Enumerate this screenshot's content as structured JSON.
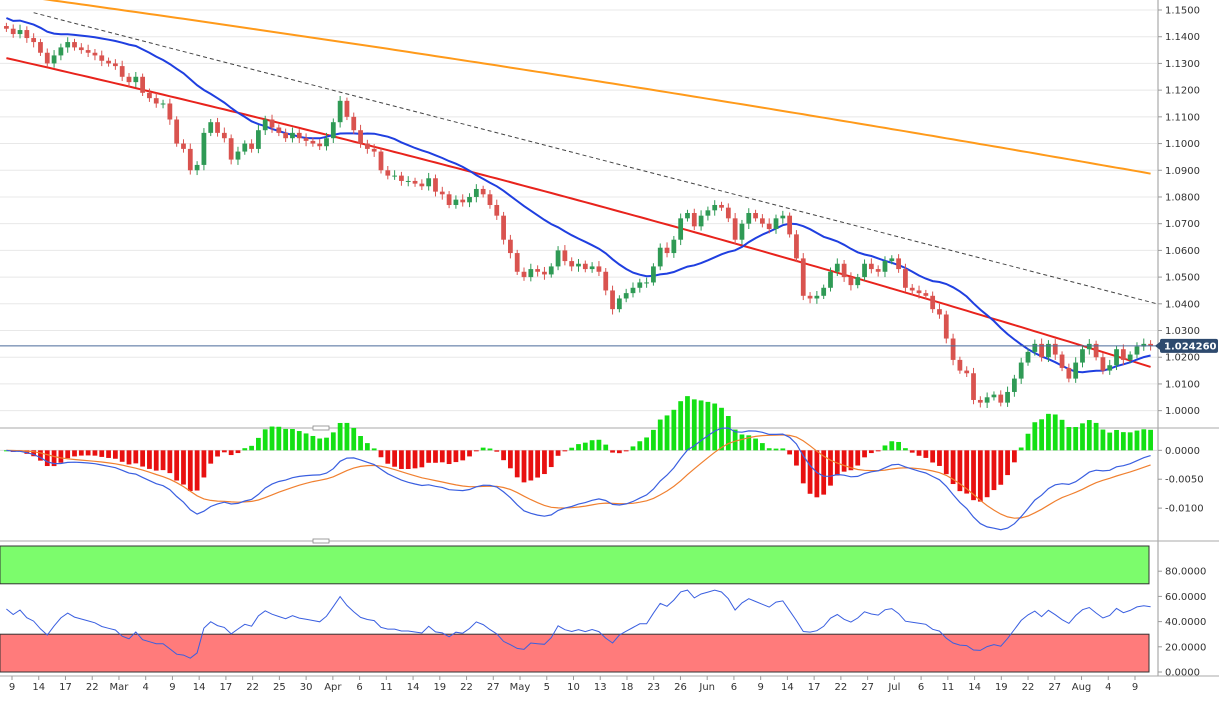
{
  "chart_data": [
    {
      "type": "candlestick",
      "panel": "price",
      "ylim": [
        0.995,
        1.153
      ],
      "y_ticks": [
        "1.1500",
        "1.1400",
        "1.1300",
        "1.1200",
        "1.1100",
        "1.1000",
        "1.0900",
        "1.0800",
        "1.0700",
        "1.0600",
        "1.0500",
        "1.0400",
        "1.0300",
        "1.0200",
        "1.0100",
        "1.0000"
      ],
      "last_price": "1.024260",
      "colors": {
        "up": "#2f9a55",
        "down": "#d9534f",
        "ma_fast": "#1f3fe0",
        "ma_mid": "#e8231c",
        "ma_slow": "#ff9a1a",
        "trendline": "#444444",
        "price_line": "#4a6a9a"
      },
      "series": {
        "close": [
          1.143,
          1.141,
          1.1425,
          1.1395,
          1.138,
          1.134,
          1.13,
          1.133,
          1.136,
          1.138,
          1.136,
          1.135,
          1.134,
          1.133,
          1.131,
          1.13,
          1.129,
          1.125,
          1.123,
          1.125,
          1.119,
          1.117,
          1.115,
          1.115,
          1.109,
          1.1,
          1.098,
          1.09,
          1.092,
          1.104,
          1.108,
          1.104,
          1.102,
          1.094,
          1.097,
          1.1,
          1.098,
          1.105,
          1.109,
          1.106,
          1.104,
          1.102,
          1.104,
          1.102,
          1.101,
          1.1,
          1.099,
          1.102,
          1.108,
          1.116,
          1.11,
          1.105,
          1.1,
          1.098,
          1.097,
          1.09,
          1.088,
          1.088,
          1.086,
          1.086,
          1.085,
          1.084,
          1.087,
          1.082,
          1.081,
          1.077,
          1.079,
          1.078,
          1.08,
          1.083,
          1.081,
          1.077,
          1.073,
          1.064,
          1.059,
          1.052,
          1.05,
          1.053,
          1.052,
          1.051,
          1.054,
          1.06,
          1.056,
          1.054,
          1.055,
          1.053,
          1.054,
          1.052,
          1.045,
          1.038,
          1.042,
          1.044,
          1.046,
          1.048,
          1.048,
          1.054,
          1.061,
          1.059,
          1.064,
          1.072,
          1.074,
          1.069,
          1.073,
          1.075,
          1.077,
          1.076,
          1.072,
          1.064,
          1.07,
          1.074,
          1.072,
          1.07,
          1.068,
          1.072,
          1.073,
          1.066,
          1.057,
          1.043,
          1.042,
          1.043,
          1.046,
          1.052,
          1.055,
          1.05,
          1.047,
          1.05,
          1.055,
          1.053,
          1.052,
          1.056,
          1.057,
          1.053,
          1.046,
          1.045,
          1.044,
          1.043,
          1.038,
          1.036,
          1.027,
          1.019,
          1.015,
          1.014,
          1.004,
          1.003,
          1.005,
          1.006,
          1.003,
          1.007,
          1.012,
          1.018,
          1.022,
          1.025,
          1.02,
          1.025,
          1.021,
          1.016,
          1.012,
          1.018,
          1.023,
          1.025,
          1.02,
          1.015,
          1.017,
          1.023,
          1.019,
          1.021,
          1.024,
          1.025,
          1.0243
        ]
      },
      "x_ticks": [
        "9",
        "14",
        "17",
        "22",
        "Mar",
        "4",
        "9",
        "14",
        "17",
        "22",
        "25",
        "30",
        "Apr",
        "6",
        "11",
        "14",
        "19",
        "22",
        "27",
        "May",
        "5",
        "10",
        "13",
        "18",
        "23",
        "26",
        "Jun",
        "6",
        "9",
        "14",
        "17",
        "22",
        "27",
        "Jul",
        "6",
        "11",
        "14",
        "19",
        "22",
        "27",
        "Aug",
        "4",
        "9"
      ]
    },
    {
      "type": "histogram+lines",
      "panel": "macd",
      "ylim": [
        -0.015,
        0.003
      ],
      "y_ticks": [
        "0.0000",
        "-0.0050",
        "-0.0100"
      ],
      "colors": {
        "hist_pos": "#14e014",
        "hist_neg": "#e81010",
        "macd": "#3a5fe0",
        "signal": "#f08030"
      }
    },
    {
      "type": "line",
      "panel": "rsi",
      "ylim": [
        0,
        100
      ],
      "y_ticks": [
        "80.0000",
        "60.0000",
        "40.0000",
        "20.0000",
        "0.0000"
      ],
      "zones": [
        {
          "from": 70,
          "to": 100,
          "color": "#7cfc6c"
        },
        {
          "from": 0,
          "to": 30,
          "color": "#ff7b7b"
        }
      ],
      "colors": {
        "line": "#3a5fe0"
      }
    }
  ]
}
